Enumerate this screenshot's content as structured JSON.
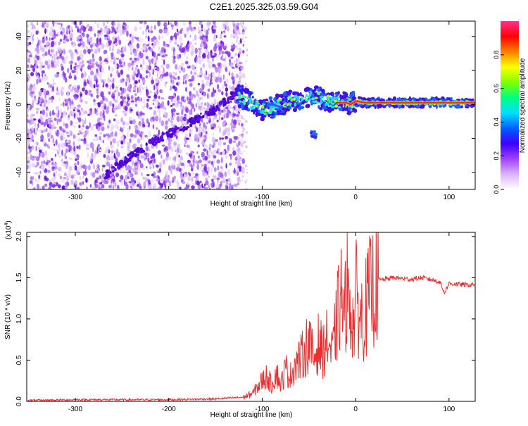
{
  "title": "C2E1.2025.325.03.59.G04",
  "colors": {
    "spectrum_scatter": "#7a2ee6",
    "snr_line": "#ee2e2e",
    "axis": "#000000"
  },
  "chart_data": [
    {
      "type": "heatmap",
      "title": "C2E1.2025.325.03.59.G04",
      "xlabel": "Height of straight line (km)",
      "ylabel": "Frequency (Hz)",
      "xlim": [
        -352,
        128
      ],
      "ylim": [
        -50,
        49
      ],
      "xticks": [
        -300,
        -200,
        -100,
        0,
        100
      ],
      "yticks": [
        -40,
        -20,
        0,
        20,
        40
      ],
      "grid": false,
      "colorbar": {
        "label": "Normalized spectral amplitude",
        "range": [
          0.0,
          1.0
        ],
        "ticks": [
          "0.0",
          "0.2",
          "0.4",
          "0.6",
          "0.8"
        ],
        "tick_values": [
          0.0,
          0.2,
          0.4,
          0.6,
          0.8
        ],
        "colormap": [
          "#ffffff",
          "#d9b3ff",
          "#a040ff",
          "#3a00ff",
          "#0060ff",
          "#00e0ff",
          "#00ff80",
          "#80ff00",
          "#ffff00",
          "#ff8000",
          "#ff0000",
          "#ff3090"
        ]
      },
      "features": {
        "noise_region_x": [
          -352,
          -128
        ],
        "diagonal_trace": [
          [
            -270,
            -43
          ],
          [
            -240,
            -30
          ],
          [
            -210,
            -20
          ],
          [
            -180,
            -12
          ],
          [
            -150,
            -3
          ],
          [
            -130,
            6
          ],
          [
            -120,
            10
          ]
        ],
        "signal_trace": [
          [
            -125,
            5
          ],
          [
            -115,
            2
          ],
          [
            -100,
            -3
          ],
          [
            -90,
            -2
          ],
          [
            -80,
            0
          ],
          [
            -70,
            2
          ],
          [
            -60,
            3
          ],
          [
            -50,
            5
          ],
          [
            -40,
            4
          ],
          [
            -30,
            2
          ],
          [
            -20,
            1
          ],
          [
            -10,
            1
          ],
          [
            -5,
            0
          ],
          [
            0,
            2
          ],
          [
            10,
            1
          ],
          [
            40,
            1
          ],
          [
            80,
            1
          ],
          [
            100,
            1
          ],
          [
            128,
            1
          ]
        ],
        "side_blob": [
          -45,
          -18
        ]
      }
    },
    {
      "type": "line",
      "xlabel": "Height of straight line (km)",
      "ylabel": "SNR (10 * v/v)",
      "y_multiplier": "(x10^4)",
      "y_multiplier_base": "(x10",
      "y_multiplier_exp": "4",
      "y_multiplier_close": ")",
      "xlim": [
        -352,
        128
      ],
      "ylim": [
        0,
        2.05
      ],
      "xticks": [
        -300,
        -200,
        -100,
        0,
        100
      ],
      "yticks": [
        "0.0",
        "0.5",
        "1.0",
        "1.5",
        "2.0"
      ],
      "ytick_values": [
        0.0,
        0.5,
        1.0,
        1.5,
        2.0
      ],
      "grid": false,
      "series": [
        {
          "values_note": "",
          "x": [
            -352,
            -300,
            -250,
            -200,
            -150,
            -120,
            -110,
            -100,
            -95,
            -90,
            -85,
            -80,
            -75,
            -70,
            -65,
            -60,
            -55,
            -50,
            -45,
            -40,
            -35,
            -30,
            -25,
            -20,
            -15,
            -12,
            -10,
            -8,
            -5,
            -2,
            0,
            5,
            10,
            15,
            20,
            25,
            30,
            40,
            50,
            60,
            70,
            80,
            90,
            95,
            100,
            110,
            120,
            128
          ],
          "y": [
            0.01,
            0.02,
            0.02,
            0.02,
            0.03,
            0.05,
            0.1,
            0.25,
            0.3,
            0.2,
            0.35,
            0.2,
            0.4,
            0.3,
            0.45,
            0.5,
            0.6,
            0.75,
            0.5,
            0.7,
            0.6,
            0.75,
            0.55,
            1.0,
            1.3,
            0.9,
            1.4,
            1.1,
            1.2,
            0.9,
            1.3,
            1.0,
            1.1,
            1.3,
            1.4,
            1.47,
            1.48,
            1.5,
            1.49,
            1.48,
            1.5,
            1.48,
            1.45,
            1.32,
            1.43,
            1.42,
            1.41,
            1.42
          ],
          "peak": [
            -9,
            2.05
          ]
        }
      ]
    }
  ]
}
